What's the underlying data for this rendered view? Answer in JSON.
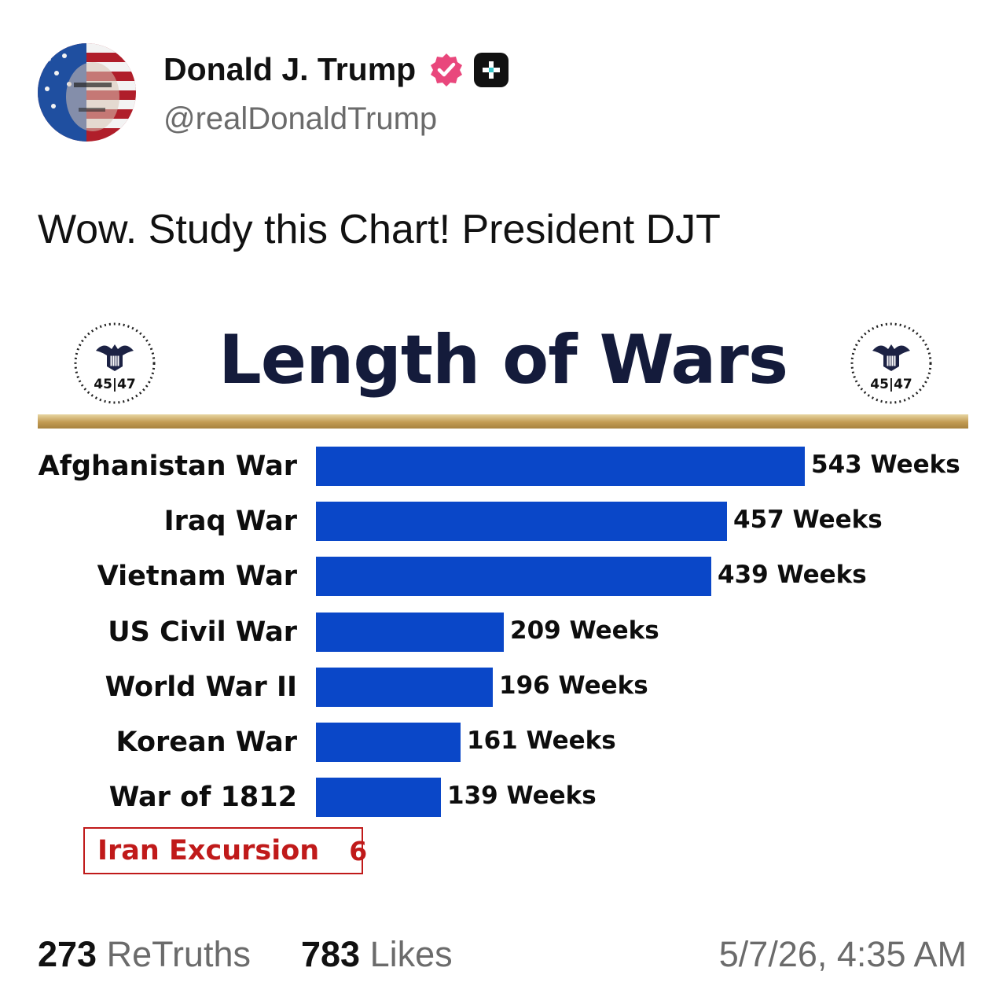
{
  "post": {
    "author_name": "Donald J. Trump",
    "handle": "@realDonaldTrump",
    "text": "Wow. Study this Chart! President DJT",
    "retruths_count": "273",
    "retruths_label": "ReTruths",
    "likes_count": "783",
    "likes_label": "Likes",
    "timestamp": "5/7/26, 4:35 AM",
    "icons": [
      "avatar",
      "verified-badge-icon",
      "plus-badge-icon"
    ],
    "colors": {
      "verified": "#e9477c",
      "bar": "#0a47c8",
      "gold": "#c29b52",
      "callout": "#c01a1a",
      "title": "#141b3b"
    }
  },
  "chart_data": {
    "type": "bar",
    "orientation": "horizontal",
    "title": "Length of Wars",
    "seal_text": "45|47",
    "categories": [
      "Afghanistan War",
      "Iraq War",
      "Vietnam War",
      "US Civil War",
      "World War II",
      "Korean War",
      "War of 1812"
    ],
    "values": [
      543,
      457,
      439,
      209,
      196,
      161,
      139
    ],
    "value_labels": [
      "543 Weeks",
      "457 Weeks",
      "439 Weeks",
      "209 Weeks",
      "196 Weeks",
      "161 Weeks",
      "139 Weeks"
    ],
    "unit": "Weeks",
    "callout": {
      "label": "Iran Excursion",
      "value": "6"
    },
    "xlim": [
      0,
      543
    ],
    "grid": false
  }
}
